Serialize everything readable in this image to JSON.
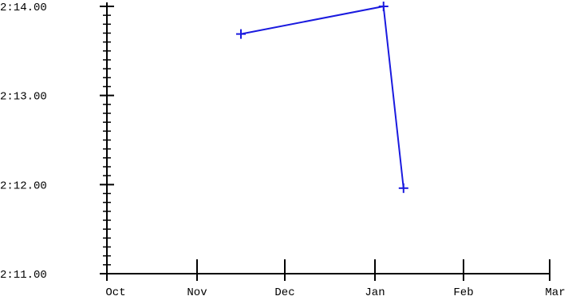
{
  "chart_data": {
    "type": "line",
    "title": "",
    "xlabel": "",
    "ylabel": "",
    "x_ticks": [
      "Oct",
      "Nov",
      "Dec",
      "Jan",
      "Feb",
      "Mar"
    ],
    "y_ticks": [
      "2:11.00",
      "2:12.00",
      "2:13.00",
      "2:14.00"
    ],
    "xlim": [
      "2023-10-01",
      "2024-03-01"
    ],
    "ylim": [
      "2:11.00",
      "2:14.00"
    ],
    "y_minor_tick_step": "0:00.10",
    "grid": false,
    "series": [
      {
        "color": "#1a1adf",
        "marker": "plus",
        "points": [
          {
            "x": "2023-11-16",
            "y": "2:13.69"
          },
          {
            "x": "2024-01-04",
            "y": "2:14.00"
          },
          {
            "x": "2024-01-11",
            "y": "2:11.96"
          }
        ]
      }
    ]
  }
}
